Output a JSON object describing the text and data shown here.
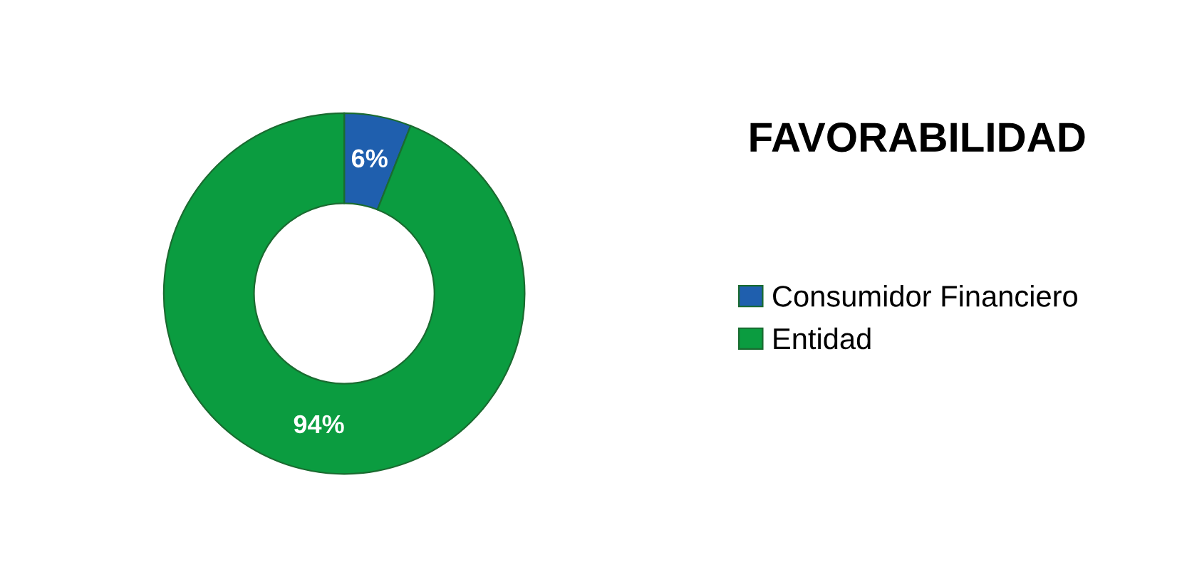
{
  "chart_data": {
    "type": "donut",
    "title": "FAVORABILIDAD",
    "categories": [
      "Consumidor Financiero",
      "Entidad"
    ],
    "values": [
      6,
      94
    ],
    "colors": [
      "#1f5fae",
      "#0b9c40"
    ],
    "value_labels": [
      "6%",
      "94%"
    ],
    "legend": "right"
  }
}
